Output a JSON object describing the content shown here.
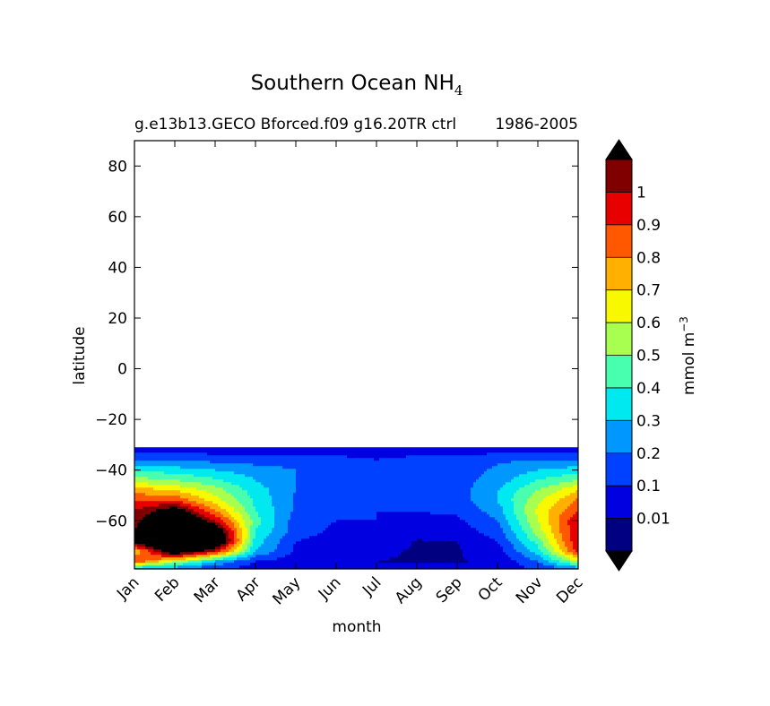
{
  "chart_data": {
    "type": "contourf",
    "title": "Southern Ocean NH",
    "title_subscript": "4",
    "subtitle_left": "g.e13b13.GECO Bforced.f09 g16.20TR ctrl",
    "subtitle_right": "1986-2005",
    "xlabel": "month",
    "ylabel": "latitude",
    "x_ticks": [
      "Jan",
      "Feb",
      "Mar",
      "Apr",
      "May",
      "Jun",
      "Jul",
      "Aug",
      "Sep",
      "Oct",
      "Nov",
      "Dec"
    ],
    "y_ticks": [
      80,
      60,
      40,
      20,
      0,
      -20,
      -40,
      -60
    ],
    "y_tick_labels": [
      "80",
      "60",
      "40",
      "20",
      "0",
      "−20",
      "−40",
      "−60"
    ],
    "ylim": [
      -79,
      90
    ],
    "data_lat_range": [
      -79,
      -31
    ],
    "colorbar": {
      "label": "mmol m",
      "label_superscript": "−3",
      "levels": [
        0.01,
        0.1,
        0.2,
        0.3,
        0.4,
        0.5,
        0.6,
        0.7,
        0.8,
        0.9,
        1
      ],
      "tick_labels": [
        "0.01",
        "0.1",
        "0.2",
        "0.3",
        "0.4",
        "0.5",
        "0.6",
        "0.7",
        "0.8",
        "0.9",
        "1"
      ],
      "colors": [
        "#000080",
        "#0000e0",
        "#0040ff",
        "#0098ff",
        "#00e8f0",
        "#48ffb0",
        "#a8ff50",
        "#f8f800",
        "#ffb000",
        "#ff5800",
        "#e80000",
        "#800000"
      ],
      "under_color": "#000000",
      "over_color": "#000000"
    },
    "grid": {
      "months": [
        1,
        2,
        3,
        4,
        5,
        6,
        7,
        8,
        9,
        10,
        11,
        12
      ],
      "lats": [
        -79,
        -76,
        -72,
        -68,
        -64,
        -60,
        -56,
        -52,
        -48,
        -44,
        -40,
        -36,
        -33,
        -31
      ],
      "values": [
        [
          0.25,
          0.2,
          0.1,
          0.05,
          0.05,
          0.05,
          0.02,
          0.02,
          0.02,
          0.05,
          0.1,
          0.2
        ],
        [
          0.9,
          0.6,
          0.3,
          0.1,
          0.05,
          0.05,
          0.01,
          0.005,
          0.005,
          0.02,
          0.2,
          0.6
        ],
        [
          0.7,
          1.3,
          1.0,
          0.3,
          0.08,
          0.05,
          0.02,
          0.005,
          0.005,
          0.05,
          0.35,
          0.95
        ],
        [
          1.2,
          1.5,
          1.4,
          0.35,
          0.1,
          0.06,
          0.05,
          0.005,
          0.008,
          0.1,
          0.45,
          1.0
        ],
        [
          1.1,
          1.5,
          1.3,
          0.4,
          0.15,
          0.08,
          0.08,
          0.05,
          0.05,
          0.15,
          0.55,
          1.0
        ],
        [
          1.05,
          1.4,
          1.0,
          0.45,
          0.15,
          0.1,
          0.1,
          0.08,
          0.08,
          0.2,
          0.6,
          1.0
        ],
        [
          1.0,
          1.2,
          0.8,
          0.4,
          0.18,
          0.12,
          0.1,
          0.1,
          0.12,
          0.25,
          0.62,
          0.9
        ],
        [
          0.9,
          0.9,
          0.65,
          0.38,
          0.18,
          0.15,
          0.12,
          0.12,
          0.15,
          0.3,
          0.58,
          0.82
        ],
        [
          0.75,
          0.7,
          0.55,
          0.35,
          0.2,
          0.15,
          0.12,
          0.12,
          0.15,
          0.3,
          0.5,
          0.7
        ],
        [
          0.55,
          0.5,
          0.42,
          0.3,
          0.2,
          0.15,
          0.12,
          0.12,
          0.15,
          0.25,
          0.4,
          0.5
        ],
        [
          0.38,
          0.35,
          0.3,
          0.25,
          0.2,
          0.15,
          0.12,
          0.12,
          0.15,
          0.22,
          0.3,
          0.35
        ],
        [
          0.18,
          0.18,
          0.17,
          0.15,
          0.15,
          0.12,
          0.1,
          0.12,
          0.15,
          0.18,
          0.2,
          0.2
        ],
        [
          0.08,
          0.08,
          0.08,
          0.08,
          0.08,
          0.08,
          0.08,
          0.08,
          0.08,
          0.08,
          0.08,
          0.08
        ],
        [
          0.005,
          0.005,
          0.005,
          0.005,
          0.005,
          0.005,
          0.005,
          0.005,
          0.005,
          0.005,
          0.005,
          0.005
        ]
      ]
    }
  }
}
